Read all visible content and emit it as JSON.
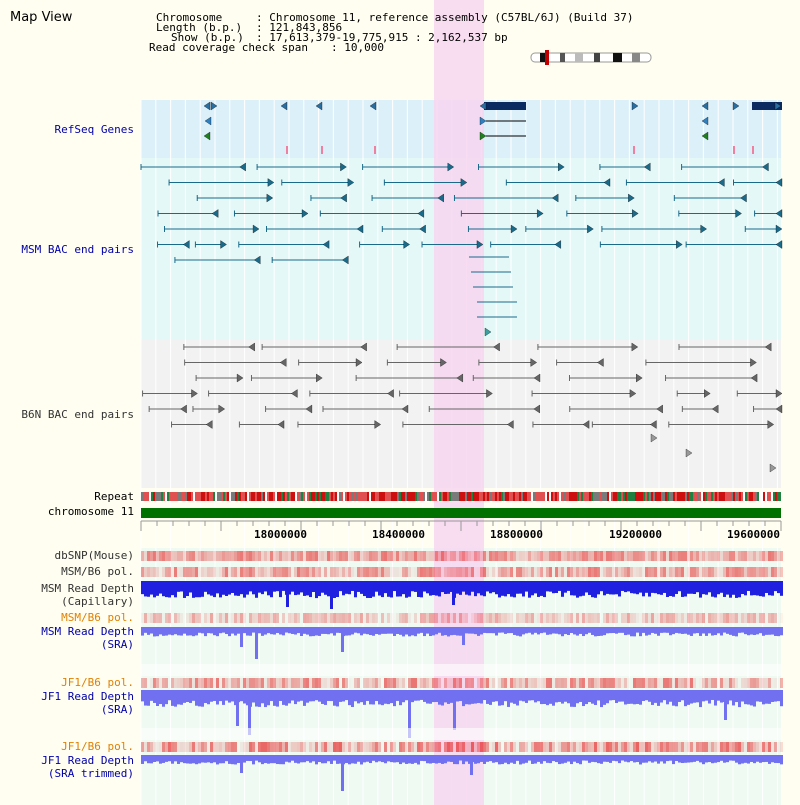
{
  "view": {
    "title": "Map View",
    "header": {
      "chromosome_label": "Chromosome",
      "chromosome_value": ": Chromosome 11, reference assembly (C57BL/6J) (Build 37)",
      "length_label": "Length (b.p.)",
      "length_value": ": 121,843,856",
      "show_label": "Show (b.p.)",
      "show_value": ": 17,613,379-19,775,915 : 2,162,537 bp",
      "span_label": "Read coverage check span",
      "span_value": ": 10,000"
    }
  },
  "tracks": {
    "refseq": "RefSeq Genes",
    "msm_bac": "MSM BAC end pairs",
    "b6n_bac": "B6N BAC end pairs",
    "repeat": "Repeat",
    "chromosome": "chromosome 11",
    "dbsnp": "dbSNP(Mouse)",
    "msm_b6_pol_1": "MSM/B6 pol.",
    "msm_depth_cap_1": "MSM Read Depth",
    "msm_depth_cap_2": "(Capillary)",
    "msm_b6_pol_2": "MSM/B6 pol.",
    "msm_depth_sra_1": "MSM Read Depth",
    "msm_depth_sra_2": "(SRA)",
    "jf1_b6_pol_1": "JF1/B6 pol.",
    "jf1_depth_sra_1": "JF1 Read Depth",
    "jf1_depth_sra_2": "(SRA)",
    "jf1_b6_pol_2": "JF1/B6 pol.",
    "jf1_depth_trim_1": "JF1 Read Depth",
    "jf1_depth_trim_2": "(SRA trimmed)"
  },
  "axis": {
    "ticks": [
      "18000000",
      "18400000",
      "18800000",
      "19200000",
      "19600000"
    ]
  },
  "colors": {
    "label_blue": "#0000aa",
    "label_dark": "#333333",
    "label_orange": "#e08000",
    "highlight": "#f7d6f0",
    "refseq_bg": "#dcf0fa",
    "msm_bac_bg": "#e4f8f8",
    "b6n_bac_bg": "#f2f2f2",
    "chromosome_bar": "#007000",
    "depth_blue": "#2020e0",
    "sra_blue": "#7070f0"
  }
}
